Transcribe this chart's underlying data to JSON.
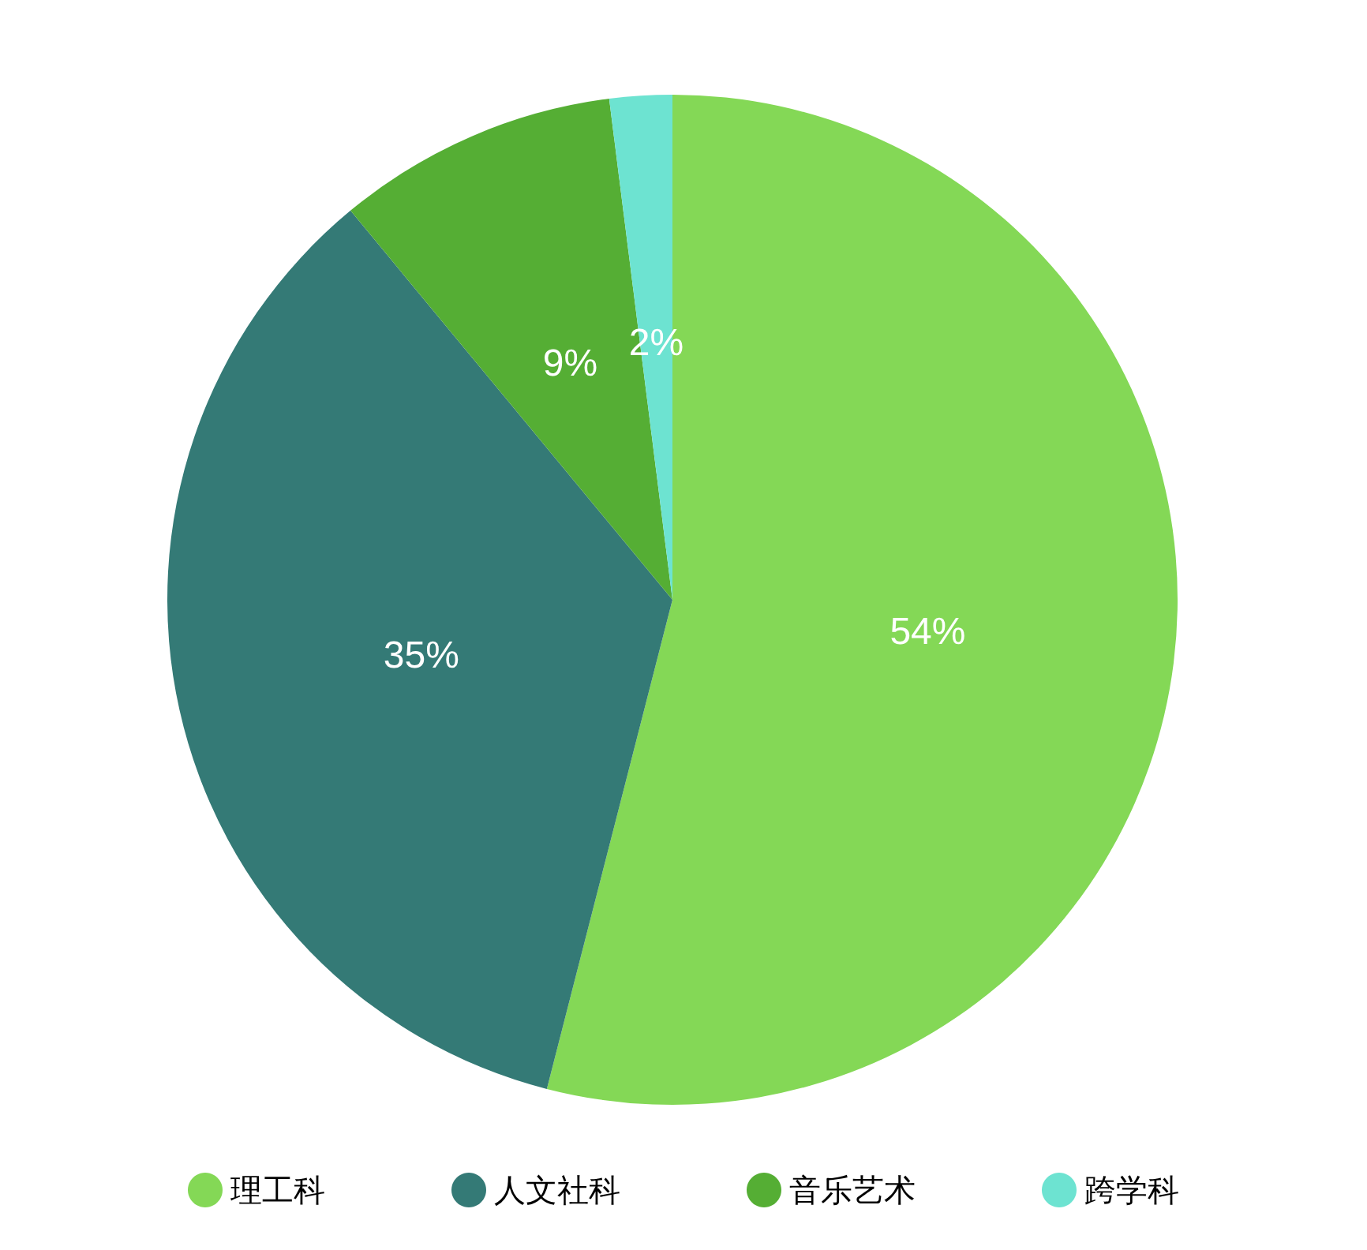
{
  "chart_data": {
    "type": "pie",
    "categories": [
      "理工科",
      "人文社科",
      "音乐艺术",
      "跨学科"
    ],
    "values": [
      54,
      35,
      9,
      2
    ],
    "colors": [
      "#84d856",
      "#347a76",
      "#55ae34",
      "#6de3d1"
    ],
    "value_labels": [
      "54%",
      "35%",
      "9%",
      "2%"
    ],
    "legend": "bottom"
  }
}
